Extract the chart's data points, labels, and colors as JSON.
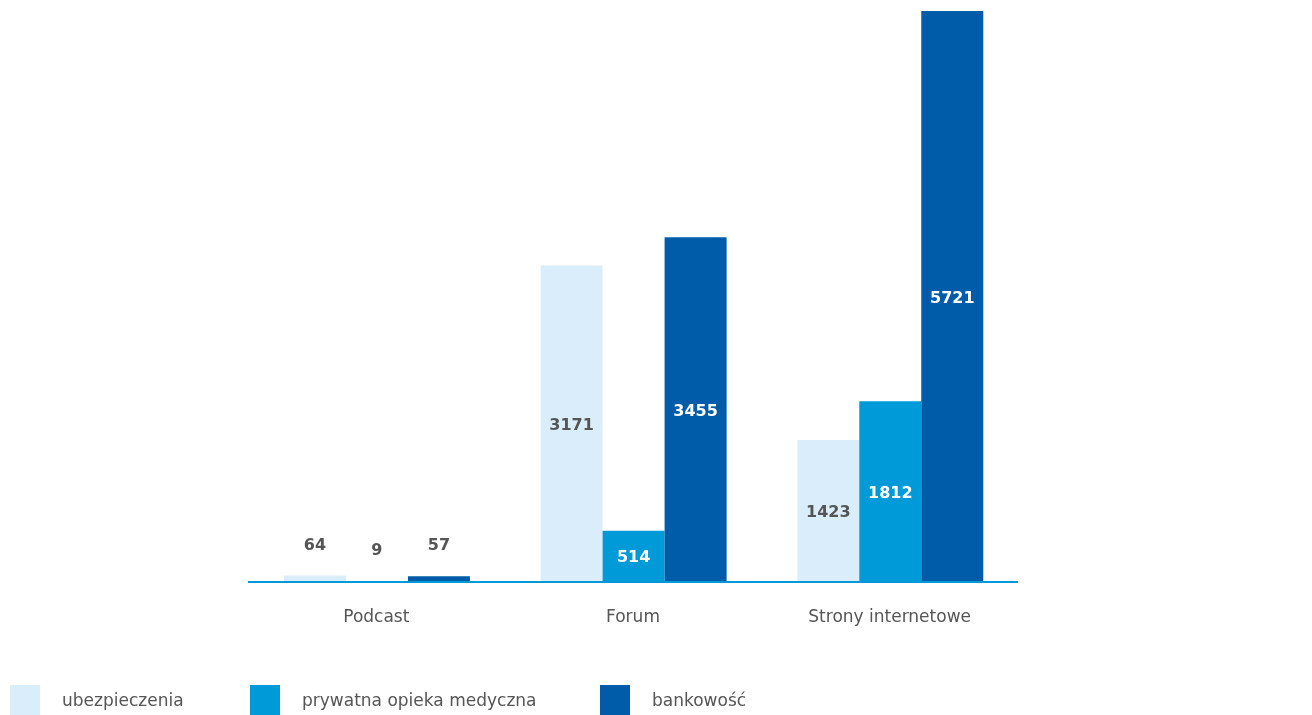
{
  "chart_data": {
    "type": "bar",
    "categories": [
      "Podcast",
      "Forum",
      "Strony internetowe"
    ],
    "series": [
      {
        "name": "ubezpieczenia",
        "color": "#d9eefa",
        "values": [
          64,
          3171,
          1423
        ]
      },
      {
        "name": "prywatna opieka medyczna",
        "color": "#009ad9",
        "values": [
          9,
          514,
          1812
        ]
      },
      {
        "name": "bankowość",
        "color": "#005ca9",
        "values": [
          57,
          3455,
          5721
        ]
      }
    ],
    "data_labels": true,
    "legend": "bottom left",
    "grid": false
  }
}
